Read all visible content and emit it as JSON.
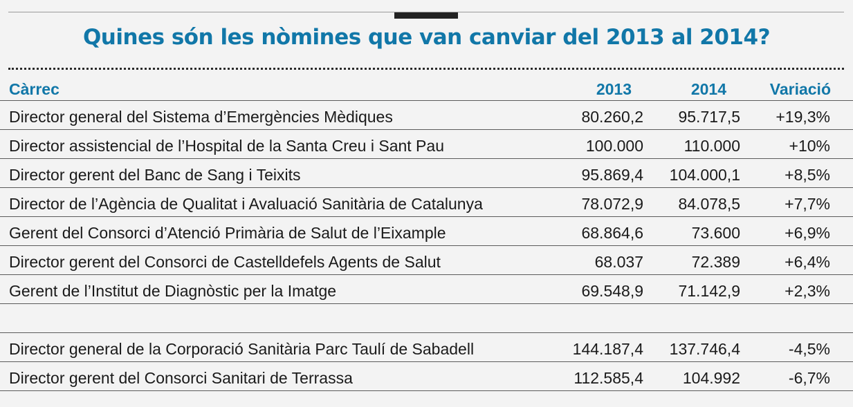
{
  "title": "Quines són les nòmines que van canviar del 2013 al 2014?",
  "header": {
    "col_label": "Càrrec",
    "col_2013": "2013",
    "col_2014": "2014",
    "col_var": "Variació"
  },
  "rows_increase": [
    {
      "label": "Director general del Sistema d’Emergències Mèdiques",
      "v2013": "80.260,2",
      "v2014": "95.717,5",
      "var": "+19,3%"
    },
    {
      "label": "Director assistencial de l’Hospital de la Santa Creu i Sant Pau",
      "v2013": "100.000",
      "v2014": "110.000",
      "var": "+10%"
    },
    {
      "label": "Director gerent del Banc de Sang i Teixits",
      "v2013": "95.869,4",
      "v2014": "104.000,1",
      "var": "+8,5%"
    },
    {
      "label": "Director de l’Agència de Qualitat i Avaluació Sanitària de Catalunya",
      "v2013": "78.072,9",
      "v2014": "84.078,5",
      "var": "+7,7%"
    },
    {
      "label": "Gerent del Consorci d’Atenció Primària de Salut de l’Eixample",
      "v2013": "68.864,6",
      "v2014": "73.600",
      "var": "+6,9%"
    },
    {
      "label": "Director gerent del Consorci de Castelldefels Agents de Salut",
      "v2013": "68.037",
      "v2014": "72.389",
      "var": "+6,4%"
    },
    {
      "label": "Gerent de l’Institut de Diagnòstic per la Imatge",
      "v2013": "69.548,9",
      "v2014": "71.142,9",
      "var": "+2,3%"
    }
  ],
  "rows_decrease": [
    {
      "label": "Director general de la Corporació Sanitària Parc Taulí de Sabadell",
      "v2013": "144.187,4",
      "v2014": "137.746,4",
      "var": "-4,5%"
    },
    {
      "label": "Director gerent del Consorci Sanitari de Terrassa",
      "v2013": "112.585,4",
      "v2014": "104.992",
      "var": "-6,7%"
    }
  ]
}
